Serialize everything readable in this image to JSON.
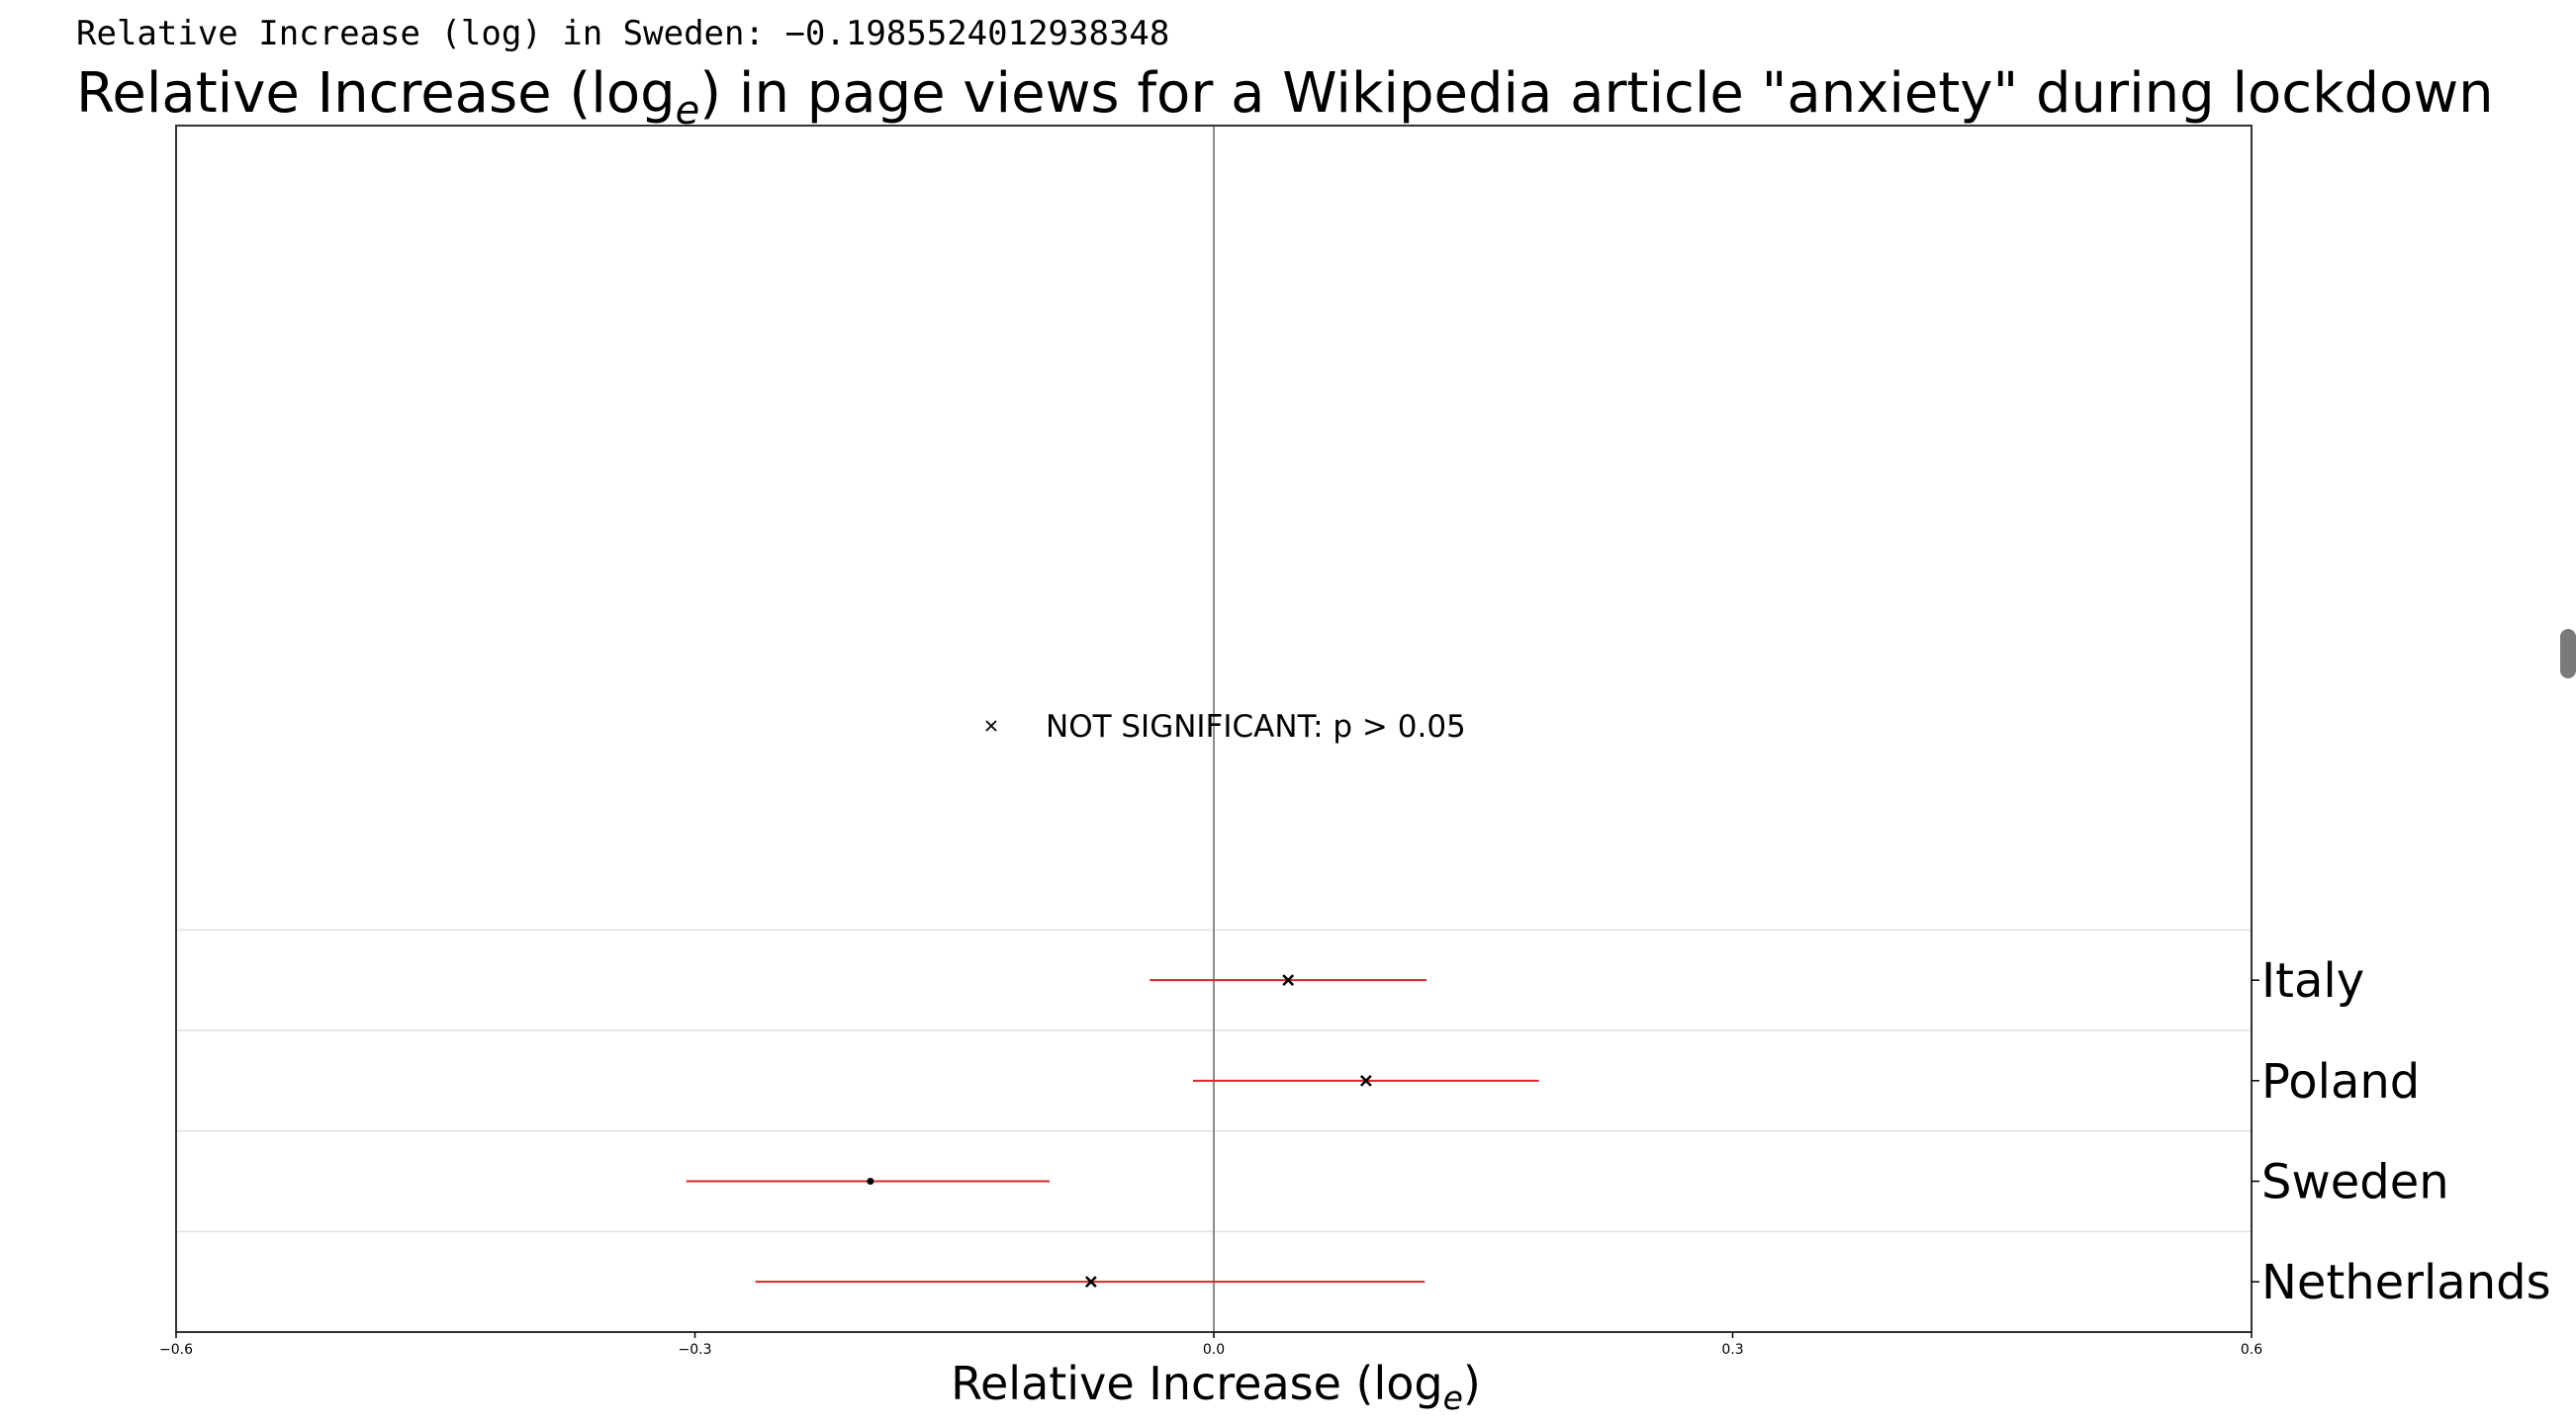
{
  "readout": "Relative Increase (log) in Sweden: −0.1985524012938348",
  "chart_data": {
    "type": "scatter",
    "title_prefix": "Relative Increase (log",
    "title_subscript": "e",
    "title_suffix": ") in page views for a Wikipedia article \"anxiety\" during lockdown",
    "xlabel_prefix": "Relative Increase (log",
    "xlabel_subscript": "e",
    "xlabel_suffix": ")",
    "xlim": [
      -0.6,
      0.6
    ],
    "xticks": [
      -0.6,
      -0.3,
      0.0,
      0.3,
      0.6
    ],
    "xtick_labels": [
      "−0.6",
      "−0.3",
      "0.0",
      "0.3",
      "0.6"
    ],
    "ylim": [
      -0.5,
      11.5
    ],
    "reference_line_x": 0.0,
    "grid": "horizontal lines between rows",
    "ytick_position": "right",
    "legend": {
      "marker": "×",
      "label": "NOT SIGNIFICANT: p > 0.05",
      "placement": "center"
    },
    "series": [
      {
        "country": "Italy",
        "estimate": 0.043,
        "ci_low": -0.037,
        "ci_high": 0.123,
        "significant": false
      },
      {
        "country": "Poland",
        "estimate": 0.088,
        "ci_low": -0.012,
        "ci_high": 0.188,
        "significant": false
      },
      {
        "country": "Sweden",
        "estimate": -0.1985524012938348,
        "ci_low": -0.305,
        "ci_high": -0.095,
        "significant": true
      },
      {
        "country": "Netherlands",
        "estimate": -0.071,
        "ci_low": -0.265,
        "ci_high": 0.122,
        "significant": false
      }
    ],
    "colors": {
      "error_bar": "#d62728",
      "marker": "#000000",
      "reference_line": "#8c8c8c",
      "grid": "#e0e0e0",
      "axes": "#333333"
    }
  }
}
